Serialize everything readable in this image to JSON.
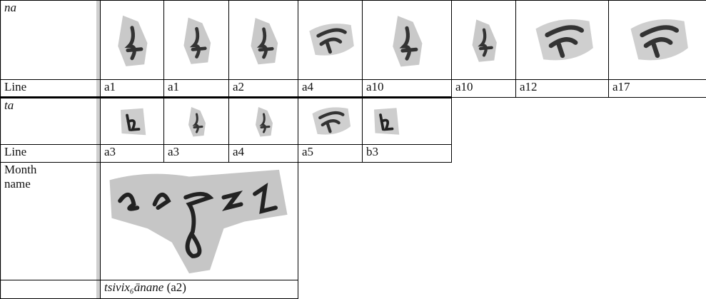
{
  "table": {
    "sections": [
      {
        "label": "na",
        "line_header": "Line",
        "lines": [
          "a1",
          "a1",
          "a2",
          "a4",
          "a10",
          "a10",
          "a12",
          "a17"
        ]
      },
      {
        "label": "ta",
        "line_header": "Line",
        "lines": [
          "a3",
          "a3",
          "a4",
          "a5",
          "b3"
        ]
      },
      {
        "label": "Month name",
        "caption_word": "tsivix₆ānane",
        "caption_ref": "(a2)"
      }
    ]
  }
}
